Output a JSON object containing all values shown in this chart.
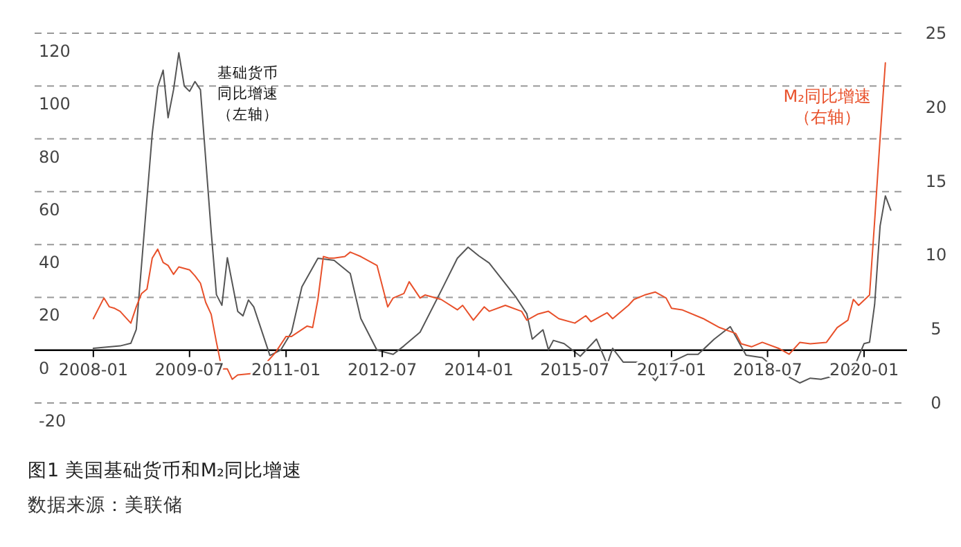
{
  "chart_data": {
    "type": "line",
    "title": "图1 美国基础货币和M₂同比增速",
    "annotations": [
      "数据来源：美联储"
    ],
    "xlim": [
      "2007-02",
      "2020-09"
    ],
    "xticks": [
      {
        "value": "2008-01",
        "label": "2008-01"
      },
      {
        "value": "2009-07",
        "label": "2009-07"
      },
      {
        "value": "2011-01",
        "label": "2011-01"
      },
      {
        "value": "2012-07",
        "label": "2012-07"
      },
      {
        "value": "2014-01",
        "label": "2014-01"
      },
      {
        "value": "2015-07",
        "label": "2015-07"
      },
      {
        "value": "2017-01",
        "label": "2017-01"
      },
      {
        "value": "2018-07",
        "label": "2018-07"
      },
      {
        "value": "2020-01",
        "label": "2020-01"
      }
    ],
    "ylim": [
      -20,
      120
    ],
    "yticks": [
      -20,
      0,
      20,
      40,
      60,
      80,
      100,
      120
    ],
    "y2lim": [
      0,
      25
    ],
    "y2ticks": [
      0,
      5,
      10,
      15,
      20,
      25
    ],
    "grid": "y",
    "series": [
      {
        "name": "基础货币同比增速（左轴）",
        "color": "#555555",
        "x": [
          "2008-01",
          "2008-06",
          "2008-08",
          "2008-09",
          "2008-12",
          "2009-01",
          "2009-02",
          "2009-03",
          "2009-04",
          "2009-05",
          "2009-06",
          "2009-07",
          "2009-08",
          "2009-09",
          "2009-11",
          "2009-12",
          "2010-01",
          "2010-02",
          "2010-04",
          "2010-05",
          "2010-06",
          "2010-07",
          "2010-10",
          "2010-12",
          "2011-02",
          "2011-04",
          "2011-07",
          "2011-10",
          "2012-01",
          "2012-03",
          "2012-06",
          "2012-09",
          "2012-11",
          "2013-02",
          "2013-06",
          "2013-09",
          "2013-11",
          "2014-01",
          "2014-03",
          "2014-05",
          "2014-08",
          "2014-10",
          "2014-11",
          "2015-01",
          "2015-02",
          "2015-03",
          "2015-05",
          "2015-08",
          "2015-11",
          "2016-01",
          "2016-02",
          "2016-04",
          "2016-07",
          "2016-10",
          "2016-12",
          "2017-04",
          "2017-06",
          "2017-09",
          "2017-12",
          "2018-03",
          "2018-06",
          "2018-09",
          "2019-01",
          "2019-03",
          "2019-05",
          "2019-09",
          "2019-11",
          "2020-01",
          "2020-02",
          "2020-03",
          "2020-04",
          "2020-05",
          "2020-06"
        ],
        "values": [
          0.7,
          1.6,
          2.6,
          7.8,
          82,
          99.6,
          106,
          88,
          98.6,
          112.6,
          100,
          98,
          101.7,
          98.6,
          45,
          21,
          17,
          35,
          14.7,
          13,
          19,
          16.4,
          -2,
          0,
          6.8,
          24,
          34.8,
          34,
          29,
          12,
          0,
          -1.6,
          1.6,
          6.8,
          22.5,
          34.8,
          39,
          35.7,
          33,
          27.8,
          20,
          13.8,
          4.2,
          7.7,
          0.2,
          3.7,
          2.5,
          -2.3,
          4.2,
          -5.4,
          0.7,
          -4.5,
          -4.5,
          -11.5,
          -5.4,
          -1.6,
          -1.6,
          4.2,
          8.9,
          -1.9,
          -2.8,
          -8,
          -12.4,
          -10.6,
          -11,
          -8.9,
          -7.2,
          2.5,
          3,
          17.3,
          47,
          58.4,
          53
        ]
      },
      {
        "name": "M₂同比增速（右轴）",
        "color": "#e8502a",
        "axis": "y2",
        "x": [
          "2008-01",
          "2008-03",
          "2008-04",
          "2008-05",
          "2008-06",
          "2008-08",
          "2008-09",
          "2008-10",
          "2008-11",
          "2008-12",
          "2009-01",
          "2009-02",
          "2009-03",
          "2009-04",
          "2009-05",
          "2009-07",
          "2009-08",
          "2009-09",
          "2009-10",
          "2009-11",
          "2009-12",
          "2010-01",
          "2010-02",
          "2010-03",
          "2010-04",
          "2010-07",
          "2010-09",
          "2010-11",
          "2011-01",
          "2011-02",
          "2011-05",
          "2011-06",
          "2011-07",
          "2011-08",
          "2011-09",
          "2011-10",
          "2011-12",
          "2012-01",
          "2012-03",
          "2012-06",
          "2012-08",
          "2012-09",
          "2012-11",
          "2012-12",
          "2013-02",
          "2013-03",
          "2013-06",
          "2013-09",
          "2013-10",
          "2013-12",
          "2014-02",
          "2014-03",
          "2014-06",
          "2014-09",
          "2014-10",
          "2014-12",
          "2015-02",
          "2015-04",
          "2015-07",
          "2015-09",
          "2015-10",
          "2015-12",
          "2016-01",
          "2016-02",
          "2016-05",
          "2016-06",
          "2016-08",
          "2016-10",
          "2016-12",
          "2017-01",
          "2017-03",
          "2017-07",
          "2017-10",
          "2018-01",
          "2018-02",
          "2018-04",
          "2018-06",
          "2018-09",
          "2018-11",
          "2019-01",
          "2019-03",
          "2019-06",
          "2019-08",
          "2019-10",
          "2019-11",
          "2019-12",
          "2020-02",
          "2020-03",
          "2020-04",
          "2020-05"
        ],
        "values": [
          5.7,
          7.1,
          6.5,
          6.4,
          6.2,
          5.4,
          6.5,
          7.4,
          7.7,
          9.8,
          10.4,
          9.5,
          9.3,
          8.7,
          9.2,
          9,
          8.6,
          8.1,
          6.8,
          6,
          4.1,
          2.3,
          2.3,
          1.6,
          1.9,
          2,
          2.6,
          3.4,
          4.5,
          4.5,
          5.2,
          5.1,
          7,
          9.9,
          9.8,
          9.8,
          9.9,
          10.2,
          9.9,
          9.3,
          6.5,
          7.1,
          7.4,
          8.2,
          7.1,
          7.3,
          7,
          6.3,
          6.6,
          5.6,
          6.5,
          6.2,
          6.6,
          6.2,
          5.6,
          6,
          6.2,
          5.7,
          5.4,
          5.9,
          5.5,
          5.9,
          6.1,
          5.7,
          6.6,
          7,
          7.3,
          7.5,
          7.1,
          6.4,
          6.3,
          5.7,
          5.1,
          4.7,
          4,
          3.8,
          4.1,
          3.7,
          3.3,
          4.1,
          4,
          4.1,
          5.1,
          5.6,
          7,
          6.6,
          7.3,
          12.3,
          17.9,
          23
        ]
      }
    ]
  }
}
